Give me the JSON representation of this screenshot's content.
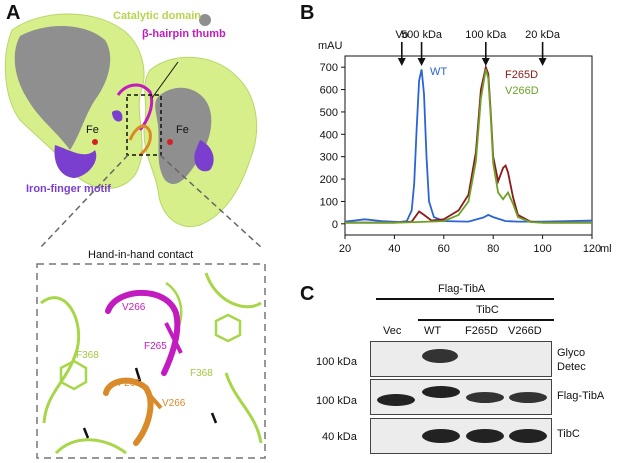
{
  "panel_a": {
    "letter": "A",
    "catalytic_domain": "Catalytic domain",
    "beta_hairpin": "β-hairpin thumb",
    "fe_left": "Fe",
    "fe_right": "Fe",
    "iron_finger": "Iron-finger motif",
    "contact_title": "Hand-in-hand contact",
    "residue_labels": {
      "v266_top": "V266",
      "f265_top": "F265",
      "f368_left": "F368",
      "f368_right": "F368",
      "f265_bottom": "F265",
      "v266_bottom": "V266"
    },
    "colors": {
      "surface": "#d6ef8a",
      "gray_region": "#8f8f8f",
      "iron_finger": "#7b3fd0",
      "magenta": "#c21cc1",
      "orange": "#d98a2a",
      "green_ribbon": "#a8d64a"
    }
  },
  "panel_b": {
    "letter": "B",
    "ylabel": "mAU",
    "xlabel": "ml",
    "markers": [
      {
        "label": "Vo",
        "x": 43
      },
      {
        "label": "500 kDa",
        "x": 51
      },
      {
        "label": "100 kDa",
        "x": 77
      },
      {
        "label": "20 kDa",
        "x": 100
      }
    ],
    "legend": [
      {
        "name": "WT",
        "color": "#2c63d6"
      },
      {
        "name": "F265D",
        "color": "#8b1a1a"
      },
      {
        "name": "V266D",
        "color": "#6ea12a"
      }
    ]
  },
  "chart_data": {
    "type": "line",
    "title": "",
    "xlabel": "ml",
    "ylabel": "mAU",
    "xlim": [
      20,
      120
    ],
    "ylim": [
      -50,
      750
    ],
    "xticks": [
      20,
      40,
      60,
      80,
      100,
      120
    ],
    "yticks": [
      0,
      100,
      200,
      300,
      400,
      500,
      600,
      700
    ],
    "series": [
      {
        "name": "WT",
        "color": "#2c63d6",
        "x": [
          20,
          28,
          35,
          42,
          45,
          47,
          48,
          49,
          50,
          51,
          52,
          53,
          54,
          56,
          60,
          70,
          76,
          78,
          80,
          85,
          90,
          100,
          110,
          120
        ],
        "y": [
          10,
          20,
          12,
          8,
          12,
          60,
          180,
          420,
          640,
          690,
          580,
          300,
          100,
          30,
          12,
          10,
          28,
          40,
          30,
          12,
          10,
          10,
          12,
          15
        ]
      },
      {
        "name": "F265D",
        "color": "#8b1a1a",
        "x": [
          20,
          40,
          47,
          50,
          52,
          55,
          60,
          66,
          70,
          73,
          75,
          77,
          78,
          79,
          80,
          82,
          84,
          85,
          86,
          88,
          90,
          95,
          100,
          110,
          120
        ],
        "y": [
          5,
          5,
          10,
          55,
          40,
          15,
          20,
          60,
          130,
          320,
          600,
          700,
          670,
          500,
          300,
          190,
          250,
          260,
          230,
          120,
          40,
          10,
          5,
          5,
          5
        ]
      },
      {
        "name": "V266D",
        "color": "#6ea12a",
        "x": [
          20,
          40,
          50,
          60,
          66,
          70,
          73,
          75,
          77,
          78,
          79,
          80,
          82,
          84,
          86,
          88,
          90,
          95,
          100,
          110,
          120
        ],
        "y": [
          5,
          5,
          8,
          12,
          40,
          100,
          280,
          560,
          690,
          650,
          480,
          270,
          140,
          110,
          140,
          90,
          30,
          8,
          5,
          5,
          5
        ]
      }
    ]
  },
  "panel_c": {
    "letter": "C",
    "group_flag": "Flag-TibA",
    "group_tibc": "TibC",
    "lanes": [
      "Vec",
      "WT",
      "F265D",
      "V266D"
    ],
    "rows": [
      {
        "mw": "100 kDa",
        "label_line1": "Glyco",
        "label_line2": "Detec"
      },
      {
        "mw": "100 kDa",
        "label_line1": "Flag-TibA",
        "label_line2": ""
      },
      {
        "mw": "40 kDa",
        "label_line1": "TibC",
        "label_line2": ""
      }
    ]
  }
}
